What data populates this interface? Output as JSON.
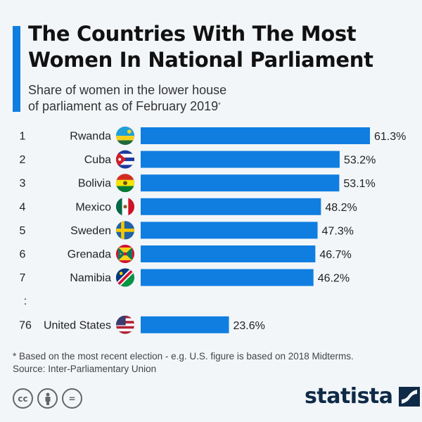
{
  "header": {
    "title_line1": "The Countries With The Most",
    "title_line2": "Women In National Parliament",
    "subtitle_line1": "Share of women in the lower house",
    "subtitle_line2": "of parliament as of February 2019",
    "subtitle_mark": "*"
  },
  "colors": {
    "accent": "#0f7ee0",
    "bar": "#0f7ee0",
    "brand": "#0e2a47"
  },
  "chart_data": {
    "type": "bar",
    "orientation": "horizontal",
    "title": "The Countries With The Most Women In National Parliament",
    "subtitle": "Share of women in the lower house of parliament as of February 2019*",
    "xlabel": "",
    "ylabel": "",
    "unit": "%",
    "xlim": [
      0,
      61.3
    ],
    "grid": false,
    "legend": "none",
    "categories": [
      "Rwanda",
      "Cuba",
      "Bolivia",
      "Mexico",
      "Sweden",
      "Grenada",
      "Namibia",
      "United States"
    ],
    "ranks": [
      "1",
      "2",
      "3",
      "4",
      "5",
      "6",
      "7",
      "76"
    ],
    "values": [
      61.3,
      53.2,
      53.1,
      48.2,
      47.3,
      46.7,
      46.2,
      23.6
    ],
    "labels": [
      "61.3%",
      "53.2%",
      "53.1%",
      "48.2%",
      "47.3%",
      "46.7%",
      "46.2%",
      "23.6%"
    ],
    "flags": [
      "rwanda-flag-icon",
      "cuba-flag-icon",
      "bolivia-flag-icon",
      "mexico-flag-icon",
      "sweden-flag-icon",
      "grenada-flag-icon",
      "namibia-flag-icon",
      "usa-flag-icon"
    ],
    "gap_marker": ":"
  },
  "footer": {
    "note": "* Based on the most recent election - e.g. U.S. figure is based on 2018 Midterms.",
    "source": "Source: Inter-Parliamentary Union",
    "license_icons": [
      "cc-icon",
      "attribution-icon",
      "no-derivatives-icon"
    ],
    "cc_label": "cc",
    "nd_label": "=",
    "brand": "statista"
  }
}
